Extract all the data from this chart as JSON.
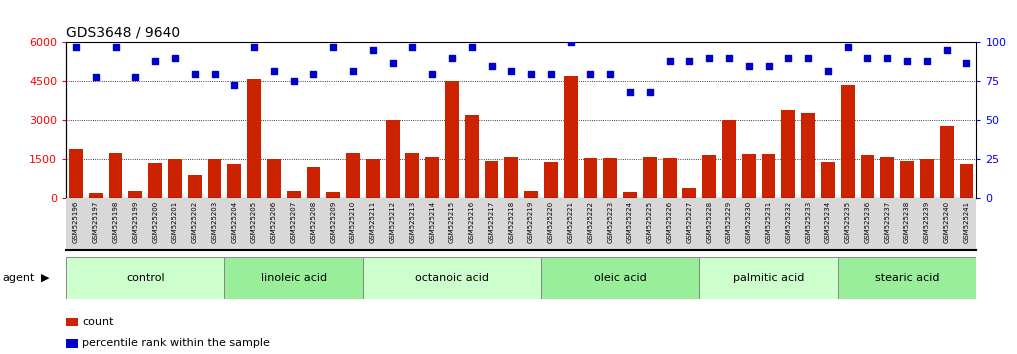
{
  "title": "GDS3648 / 9640",
  "samples": [
    "GSM525196",
    "GSM525197",
    "GSM525198",
    "GSM525199",
    "GSM525200",
    "GSM525201",
    "GSM525202",
    "GSM525203",
    "GSM525204",
    "GSM525205",
    "GSM525206",
    "GSM525207",
    "GSM525208",
    "GSM525209",
    "GSM525210",
    "GSM525211",
    "GSM525212",
    "GSM525213",
    "GSM525214",
    "GSM525215",
    "GSM525216",
    "GSM525217",
    "GSM525218",
    "GSM525219",
    "GSM525220",
    "GSM525221",
    "GSM525222",
    "GSM525223",
    "GSM525224",
    "GSM525225",
    "GSM525226",
    "GSM525227",
    "GSM525228",
    "GSM525229",
    "GSM525230",
    "GSM525231",
    "GSM525232",
    "GSM525233",
    "GSM525234",
    "GSM525235",
    "GSM525236",
    "GSM525237",
    "GSM525238",
    "GSM525239",
    "GSM525240",
    "GSM525241"
  ],
  "counts": [
    1900,
    200,
    1750,
    280,
    1350,
    1500,
    900,
    1500,
    1300,
    4600,
    1500,
    280,
    1200,
    250,
    1750,
    1500,
    3000,
    1750,
    1600,
    4500,
    3200,
    1450,
    1600,
    260,
    1400,
    4700,
    1550,
    1550,
    250,
    1600,
    1550,
    400,
    1650,
    3000,
    1700,
    1700,
    3400,
    3300,
    1400,
    4350,
    1650,
    1600,
    1450,
    1500,
    2800,
    1300
  ],
  "percentile_ranks": [
    97,
    78,
    97,
    78,
    88,
    90,
    80,
    80,
    73,
    97,
    82,
    75,
    80,
    97,
    82,
    95,
    87,
    97,
    80,
    90,
    97,
    85,
    82,
    80,
    80,
    100,
    80,
    80,
    68,
    68,
    88,
    88,
    90,
    90,
    85,
    85,
    90,
    90,
    82,
    97,
    90,
    90,
    88,
    88,
    95,
    87
  ],
  "groups": [
    {
      "name": "control",
      "start": 0,
      "end": 8
    },
    {
      "name": "linoleic acid",
      "start": 8,
      "end": 15
    },
    {
      "name": "octanoic acid",
      "start": 15,
      "end": 24
    },
    {
      "name": "oleic acid",
      "start": 24,
      "end": 32
    },
    {
      "name": "palmitic acid",
      "start": 32,
      "end": 39
    },
    {
      "name": "stearic acid",
      "start": 39,
      "end": 46
    }
  ],
  "bar_color": "#cc2200",
  "dot_color": "#0000cc",
  "ylim_left": [
    0,
    6000
  ],
  "ylim_right": [
    0,
    100
  ],
  "yticks_left": [
    0,
    1500,
    3000,
    4500,
    6000
  ],
  "yticks_right": [
    0,
    25,
    50,
    75,
    100
  ],
  "group_bg_colors": [
    "#ccffcc",
    "#aaffaa",
    "#77ee77",
    "#55ee55",
    "#33dd33",
    "#22cc22"
  ],
  "tick_bg_color": "#d8d8d8"
}
